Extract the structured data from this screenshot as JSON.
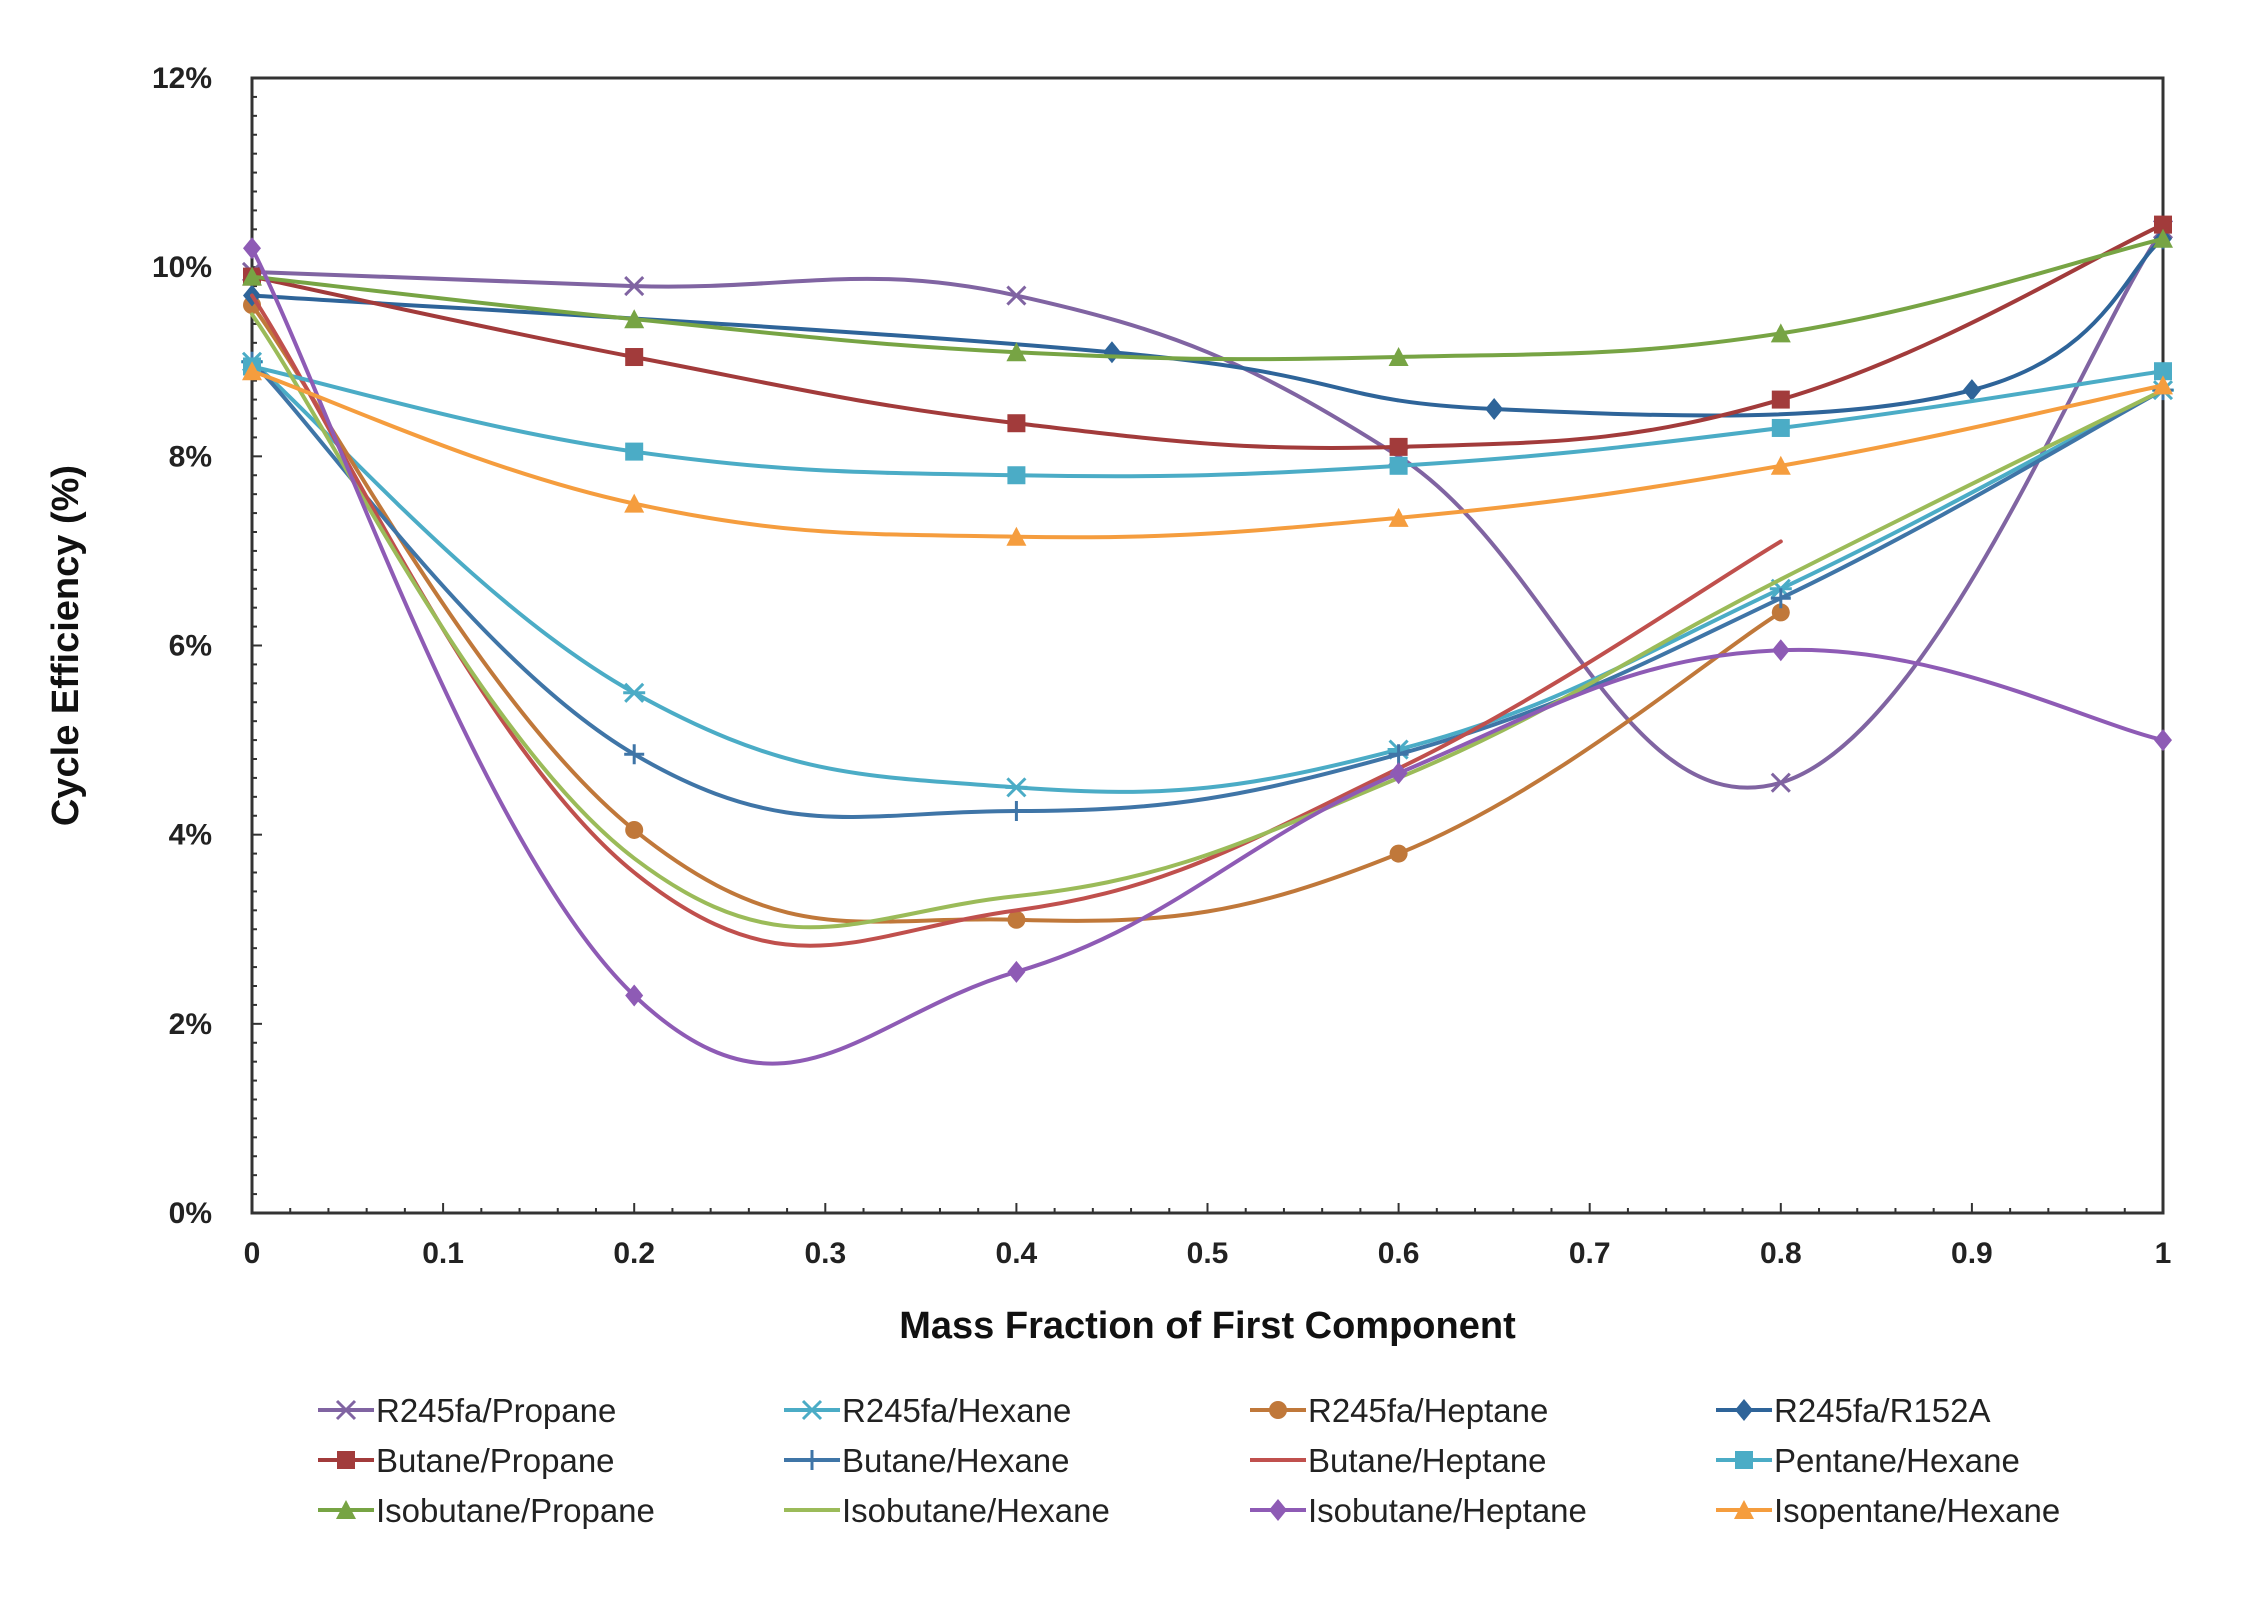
{
  "chart_data": {
    "type": "line",
    "title": "",
    "xlabel": "Mass Fraction of First Component",
    "ylabel": "Cycle Efficiency (%)",
    "xlim": [
      0,
      1
    ],
    "ylim": [
      0,
      12
    ],
    "grid": false,
    "legend_position": "bottom",
    "x_tick_values": [
      0,
      0.1,
      0.2,
      0.3,
      0.4,
      0.5,
      0.6,
      0.7,
      0.8,
      0.9,
      1
    ],
    "x_tick_labels": [
      "0",
      "0.1",
      "0.2",
      "0.3",
      "0.4",
      "0.5",
      "0.6",
      "0.7",
      "0.8",
      "0.9",
      "1"
    ],
    "y_tick_values": [
      0,
      2,
      4,
      6,
      8,
      10,
      12
    ],
    "y_tick_labels": [
      "0%",
      "2%",
      "4%",
      "6%",
      "8%",
      "10%",
      "12%"
    ],
    "series": [
      {
        "name": "R245fa/Propane",
        "color": "#8064a2",
        "marker": "x",
        "x": [
          0,
          0.2,
          0.4,
          0.6,
          0.8,
          1
        ],
        "y": [
          9.95,
          9.8,
          9.7,
          8.0,
          4.55,
          10.4
        ]
      },
      {
        "name": "R245fa/Hexane",
        "color": "#4bacc6",
        "marker": "star",
        "x": [
          0,
          0.2,
          0.4,
          0.6,
          0.8,
          1
        ],
        "y": [
          9.0,
          5.5,
          4.5,
          4.9,
          6.6,
          8.7
        ]
      },
      {
        "name": "R245fa/Heptane",
        "color": "#c0783a",
        "marker": "circle",
        "x": [
          0,
          0.2,
          0.4,
          0.6,
          0.8
        ],
        "y": [
          9.6,
          4.05,
          3.1,
          3.8,
          6.35
        ]
      },
      {
        "name": "R245fa/R152A",
        "color": "#2e6499",
        "marker": "diamond",
        "x": [
          0,
          0.45,
          0.65,
          0.9,
          1
        ],
        "y": [
          9.7,
          9.1,
          8.5,
          8.7,
          10.3
        ]
      },
      {
        "name": "Butane/Propane",
        "color": "#a23b3b",
        "marker": "square",
        "x": [
          0,
          0.2,
          0.4,
          0.6,
          0.8,
          1
        ],
        "y": [
          9.9,
          9.05,
          8.35,
          8.1,
          8.6,
          10.45
        ]
      },
      {
        "name": "Butane/Hexane",
        "color": "#3f75a7",
        "marker": "plus",
        "x": [
          0,
          0.2,
          0.4,
          0.6,
          0.8,
          1
        ],
        "y": [
          9.0,
          4.85,
          4.25,
          4.85,
          6.5,
          8.7
        ]
      },
      {
        "name": "Butane/Heptane",
        "color": "#c0504d",
        "marker": "none",
        "x": [
          0,
          0.2,
          0.4,
          0.6,
          0.8
        ],
        "y": [
          9.7,
          3.6,
          3.2,
          4.7,
          7.1
        ]
      },
      {
        "name": "Pentane/Hexane",
        "color": "#4bacc6",
        "marker": "square",
        "x": [
          0,
          0.2,
          0.4,
          0.6,
          0.8,
          1
        ],
        "y": [
          8.95,
          8.05,
          7.8,
          7.9,
          8.3,
          8.9
        ]
      },
      {
        "name": "Isobutane/Propane",
        "color": "#77a444",
        "marker": "triangle",
        "x": [
          0,
          0.2,
          0.4,
          0.6,
          0.8,
          1
        ],
        "y": [
          9.9,
          9.45,
          9.1,
          9.05,
          9.3,
          10.3
        ]
      },
      {
        "name": "Isobutane/Hexane",
        "color": "#9bbb59",
        "marker": "none",
        "x": [
          0,
          0.2,
          0.4,
          0.6,
          0.8,
          1
        ],
        "y": [
          9.5,
          3.75,
          3.35,
          4.6,
          6.7,
          8.7
        ]
      },
      {
        "name": "Isobutane/Heptane",
        "color": "#8e5bb5",
        "marker": "diamond",
        "x": [
          0,
          0.2,
          0.4,
          0.6,
          0.8,
          1
        ],
        "y": [
          10.2,
          2.3,
          2.55,
          4.65,
          5.95,
          5.0
        ]
      },
      {
        "name": "Isopentane/Hexane",
        "color": "#f59d3e",
        "marker": "triangle",
        "x": [
          0,
          0.2,
          0.4,
          0.6,
          0.8,
          1
        ],
        "y": [
          8.9,
          7.5,
          7.15,
          7.35,
          7.9,
          8.75
        ]
      }
    ]
  }
}
